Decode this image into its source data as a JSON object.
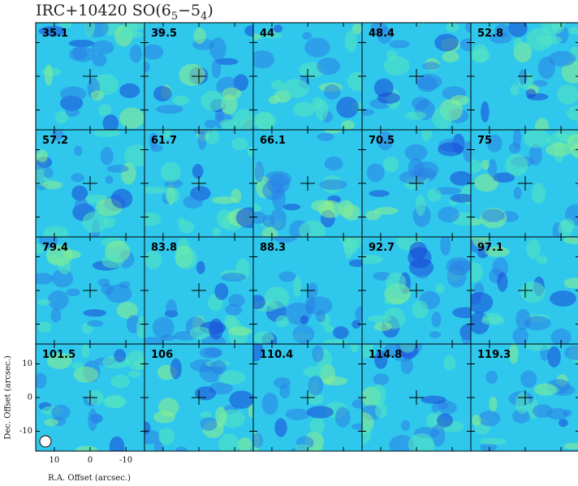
{
  "chart_data": {
    "type": "channel-map",
    "title_parts": [
      "IRC+10420  SO(6",
      "5",
      "−5",
      "4",
      ")"
    ],
    "channels": [
      35.1,
      39.5,
      44,
      48.4,
      52.8,
      57.2,
      61.7,
      66.1,
      70.5,
      75,
      79.4,
      83.8,
      88.3,
      92.7,
      97.1,
      101.5,
      106,
      110.4,
      114.8,
      119.3
    ],
    "columns": 5,
    "x_label": "R.A. Offset (arcsec.)",
    "y_label": "Dec. Offset (arcsec.)",
    "xlim": [
      15.2,
      -15.2
    ],
    "ylim": [
      -15.9,
      15.9
    ],
    "xticks": [
      10,
      0,
      -10
    ],
    "yticks": [
      10,
      0,
      -10
    ]
  }
}
